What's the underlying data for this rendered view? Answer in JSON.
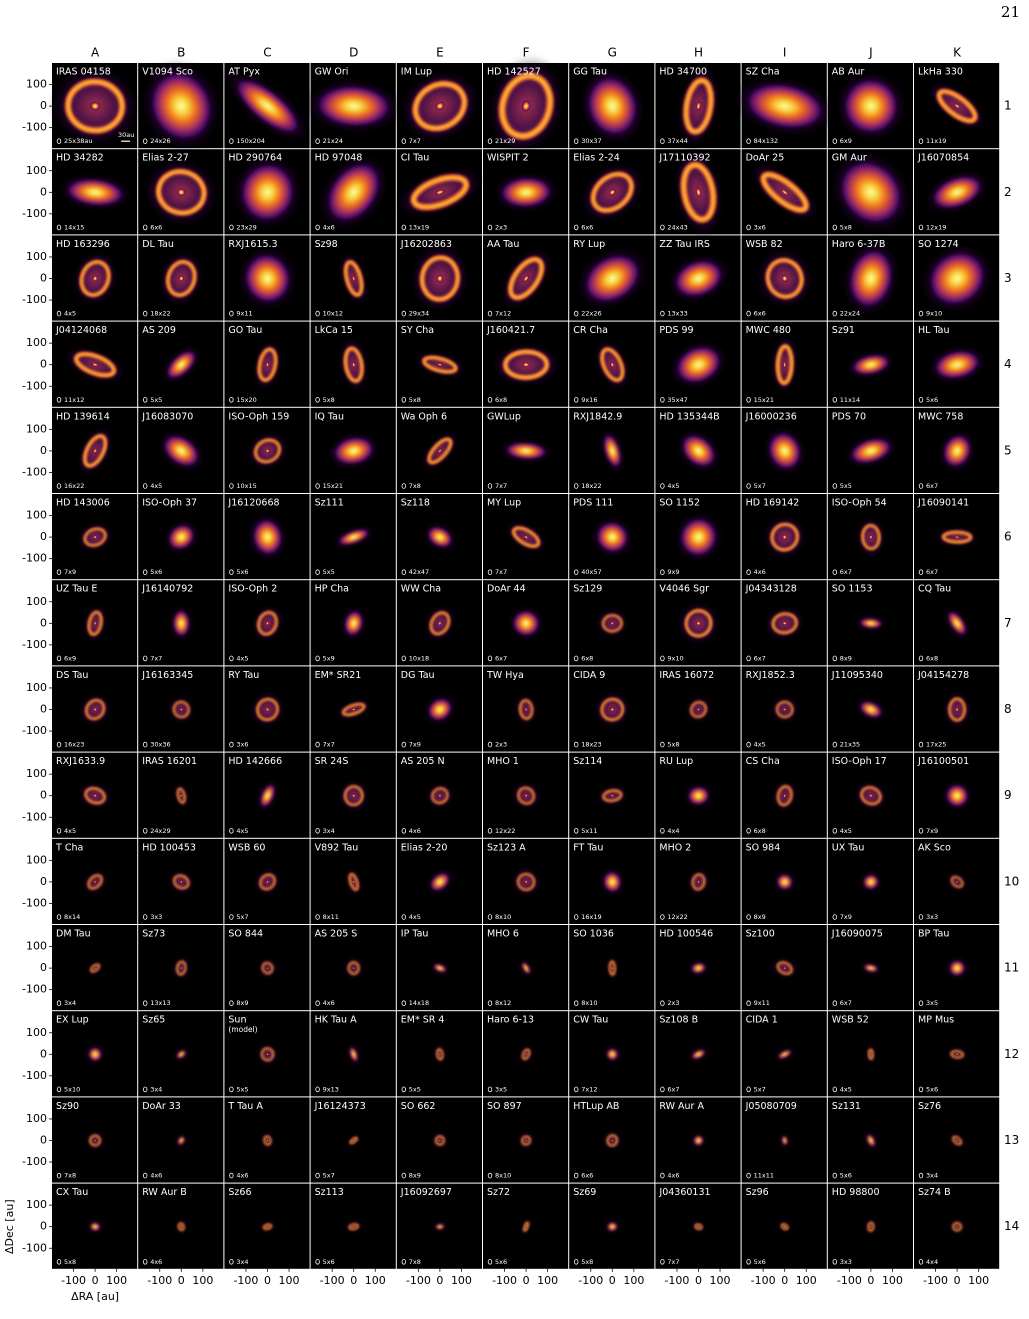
{
  "page_number": "21",
  "columns": [
    "A",
    "B",
    "C",
    "D",
    "E",
    "F",
    "G",
    "H",
    "I",
    "J",
    "K"
  ],
  "scale_bar": "30au",
  "axes": {
    "ylabel": "ΔDec [au]",
    "xlabel": "ΔRA [au]",
    "xlim": [
      -200,
      200
    ],
    "ylim": [
      -200,
      200
    ],
    "xticks": [
      -100,
      0,
      100
    ],
    "yticks": [
      100,
      0,
      -100
    ]
  },
  "rows": [
    {
      "label": "1",
      "cells": [
        {
          "name": "IRAS 04158",
          "beam": "25x38au"
        },
        {
          "name": "V1094 Sco",
          "beam": "24x26"
        },
        {
          "name": "AT Pyx",
          "beam": "150x204"
        },
        {
          "name": "GW Ori",
          "beam": "21x24"
        },
        {
          "name": "IM Lup",
          "beam": "7x7"
        },
        {
          "name": "HD 142527",
          "beam": "21x29"
        },
        {
          "name": "GG Tau",
          "beam": "30x37"
        },
        {
          "name": "HD 34700",
          "beam": "37x44"
        },
        {
          "name": "SZ Cha",
          "beam": "84x132"
        },
        {
          "name": "AB Aur",
          "beam": "6x9"
        },
        {
          "name": "LkHa 330",
          "beam": "11x19"
        }
      ]
    },
    {
      "label": "2",
      "cells": [
        {
          "name": "HD 34282",
          "beam": "14x15"
        },
        {
          "name": "Elias 2-27",
          "beam": "6x6"
        },
        {
          "name": "HD 290764",
          "beam": "23x29"
        },
        {
          "name": "HD 97048",
          "beam": "4x6"
        },
        {
          "name": "CI Tau",
          "beam": "13x19"
        },
        {
          "name": "WISPIT 2",
          "beam": "2x3"
        },
        {
          "name": "Elias 2-24",
          "beam": "6x6"
        },
        {
          "name": "J17110392",
          "beam": "24x43"
        },
        {
          "name": "DoAr 25",
          "beam": "3x6"
        },
        {
          "name": "GM Aur",
          "beam": "5x8"
        },
        {
          "name": "J16070854",
          "beam": "12x19"
        }
      ]
    },
    {
      "label": "3",
      "cells": [
        {
          "name": "HD 163296",
          "beam": "4x5"
        },
        {
          "name": "DL Tau",
          "beam": "18x22"
        },
        {
          "name": "RXJ1615.3",
          "beam": "9x11"
        },
        {
          "name": "Sz98",
          "beam": "10x12"
        },
        {
          "name": "J16202863",
          "beam": "29x34"
        },
        {
          "name": "AA Tau",
          "beam": "7x12"
        },
        {
          "name": "RY Lup",
          "beam": "22x26"
        },
        {
          "name": "ZZ Tau IRS",
          "beam": "13x33"
        },
        {
          "name": "WSB 82",
          "beam": "6x6"
        },
        {
          "name": "Haro 6-37B",
          "beam": "22x24"
        },
        {
          "name": "SO 1274",
          "beam": "9x10"
        }
      ]
    },
    {
      "label": "4",
      "cells": [
        {
          "name": "J04124068",
          "beam": "11x12"
        },
        {
          "name": "AS 209",
          "beam": "5x5"
        },
        {
          "name": "GO Tau",
          "beam": "15x20"
        },
        {
          "name": "LkCa 15",
          "beam": "5x8"
        },
        {
          "name": "SY Cha",
          "beam": "5x8"
        },
        {
          "name": "J160421.7",
          "beam": "6x8"
        },
        {
          "name": "CR Cha",
          "beam": "9x16"
        },
        {
          "name": "PDS 99",
          "beam": "35x47"
        },
        {
          "name": "MWC 480",
          "beam": "15x21"
        },
        {
          "name": "Sz91",
          "beam": "11x14"
        },
        {
          "name": "HL Tau",
          "beam": "5x6"
        }
      ]
    },
    {
      "label": "5",
      "cells": [
        {
          "name": "HD 139614",
          "beam": "16x22"
        },
        {
          "name": "J16083070",
          "beam": "4x5"
        },
        {
          "name": "ISO-Oph 159",
          "beam": "10x15"
        },
        {
          "name": "IQ Tau",
          "beam": "15x21"
        },
        {
          "name": "Wa Oph 6",
          "beam": "7x8"
        },
        {
          "name": "GWLup",
          "beam": "7x7"
        },
        {
          "name": "RXJ1842.9",
          "beam": "18x22"
        },
        {
          "name": "HD 135344B",
          "beam": "4x5"
        },
        {
          "name": "J16000236",
          "beam": "5x7"
        },
        {
          "name": "PDS 70",
          "beam": "5x5"
        },
        {
          "name": "MWC 758",
          "beam": "6x7"
        }
      ]
    },
    {
      "label": "6",
      "cells": [
        {
          "name": "HD 143006",
          "beam": "7x9"
        },
        {
          "name": "ISO-Oph 37",
          "beam": "5x6"
        },
        {
          "name": "J16120668",
          "beam": "5x6"
        },
        {
          "name": "Sz111",
          "beam": "5x5"
        },
        {
          "name": "Sz118",
          "beam": "42x47"
        },
        {
          "name": "MY Lup",
          "beam": "7x7"
        },
        {
          "name": "PDS 111",
          "beam": "40x57"
        },
        {
          "name": "SO 1152",
          "beam": "9x9"
        },
        {
          "name": "HD 169142",
          "beam": "4x6"
        },
        {
          "name": "ISO-Oph 54",
          "beam": "6x7"
        },
        {
          "name": "J16090141",
          "beam": "6x7"
        }
      ]
    },
    {
      "label": "7",
      "cells": [
        {
          "name": "UZ Tau E",
          "beam": "6x9"
        },
        {
          "name": "J16140792",
          "beam": "7x7"
        },
        {
          "name": "ISO-Oph 2",
          "beam": "4x5"
        },
        {
          "name": "HP Cha",
          "beam": "5x9"
        },
        {
          "name": "WW Cha",
          "beam": "10x18"
        },
        {
          "name": "DoAr 44",
          "beam": "6x7"
        },
        {
          "name": "Sz129",
          "beam": "6x8"
        },
        {
          "name": "V4046 Sgr",
          "beam": "9x10"
        },
        {
          "name": "J04343128",
          "beam": "6x7"
        },
        {
          "name": "SO 1153",
          "beam": "8x9"
        },
        {
          "name": "CQ Tau",
          "beam": "6x8"
        }
      ]
    },
    {
      "label": "8",
      "cells": [
        {
          "name": "DS Tau",
          "beam": "16x23"
        },
        {
          "name": "J16163345",
          "beam": "30x36"
        },
        {
          "name": "RY Tau",
          "beam": "3x6"
        },
        {
          "name": "EM* SR21",
          "beam": "7x7"
        },
        {
          "name": "DG Tau",
          "beam": "7x9"
        },
        {
          "name": "TW Hya",
          "beam": "2x3"
        },
        {
          "name": "CIDA 9",
          "beam": "18x23"
        },
        {
          "name": "IRAS 16072",
          "beam": "5x8"
        },
        {
          "name": "RXJ1852.3",
          "beam": "4x5"
        },
        {
          "name": "J11095340",
          "beam": "21x35"
        },
        {
          "name": "J04154278",
          "beam": "17x25"
        }
      ]
    },
    {
      "label": "9",
      "cells": [
        {
          "name": "RXJ1633.9",
          "beam": "4x5"
        },
        {
          "name": "IRAS 16201",
          "beam": "24x29"
        },
        {
          "name": "HD 142666",
          "beam": "4x5"
        },
        {
          "name": "SR 24S",
          "beam": "3x4"
        },
        {
          "name": "AS 205 N",
          "beam": "4x6"
        },
        {
          "name": "MHO 1",
          "beam": "12x22"
        },
        {
          "name": "Sz114",
          "beam": "5x11"
        },
        {
          "name": "RU Lup",
          "beam": "4x4"
        },
        {
          "name": "CS Cha",
          "beam": "6x8"
        },
        {
          "name": "ISO-Oph 17",
          "beam": "4x5"
        },
        {
          "name": "J16100501",
          "beam": "7x9"
        }
      ]
    },
    {
      "label": "10",
      "cells": [
        {
          "name": "T Cha",
          "beam": "8x14"
        },
        {
          "name": "HD 100453",
          "beam": "3x3"
        },
        {
          "name": "WSB 60",
          "beam": "5x7"
        },
        {
          "name": "V892 Tau",
          "beam": "8x11"
        },
        {
          "name": "Elias 2-20",
          "beam": "4x5"
        },
        {
          "name": "Sz123 A",
          "beam": "8x10"
        },
        {
          "name": "FT Tau",
          "beam": "16x19"
        },
        {
          "name": "MHO 2",
          "beam": "12x22"
        },
        {
          "name": "SO 984",
          "beam": "8x9"
        },
        {
          "name": "UX Tau",
          "beam": "7x9"
        },
        {
          "name": "AK Sco",
          "beam": "3x3"
        }
      ]
    },
    {
      "label": "11",
      "cells": [
        {
          "name": "DM Tau",
          "beam": "3x4"
        },
        {
          "name": "Sz73",
          "beam": "13x13"
        },
        {
          "name": "SO 844",
          "beam": "8x9"
        },
        {
          "name": "AS 205 S",
          "beam": "4x6"
        },
        {
          "name": "IP Tau",
          "beam": "14x18"
        },
        {
          "name": "MHO 6",
          "beam": "8x12"
        },
        {
          "name": "SO 1036",
          "beam": "8x10"
        },
        {
          "name": "HD 100546",
          "beam": "2x3"
        },
        {
          "name": "Sz100",
          "beam": "9x11"
        },
        {
          "name": "J16090075",
          "beam": "6x7"
        },
        {
          "name": "BP Tau",
          "beam": "3x5"
        }
      ]
    },
    {
      "label": "12",
      "cells": [
        {
          "name": "EX Lup",
          "beam": "5x10"
        },
        {
          "name": "Sz65",
          "beam": "3x4"
        },
        {
          "name": "Sun",
          "note": "(model)",
          "beam": "5x5"
        },
        {
          "name": "HK Tau A",
          "beam": "9x13"
        },
        {
          "name": "EM* SR 4",
          "beam": "5x5"
        },
        {
          "name": "Haro 6-13",
          "beam": "3x5"
        },
        {
          "name": "CW Tau",
          "beam": "7x12"
        },
        {
          "name": "Sz108 B",
          "beam": "6x7"
        },
        {
          "name": "CIDA 1",
          "beam": "5x7"
        },
        {
          "name": "WSB 52",
          "beam": "4x5"
        },
        {
          "name": "MP Mus",
          "beam": "5x6"
        }
      ]
    },
    {
      "label": "13",
      "cells": [
        {
          "name": "Sz90",
          "beam": "7x8"
        },
        {
          "name": "DoAr 33",
          "beam": "4x6"
        },
        {
          "name": "T Tau A",
          "beam": "4x6"
        },
        {
          "name": "J16124373",
          "beam": "5x7"
        },
        {
          "name": "SO 662",
          "beam": "8x9"
        },
        {
          "name": "SO 897",
          "beam": "8x10"
        },
        {
          "name": "HTLup AB",
          "beam": "6x6"
        },
        {
          "name": "RW Aur A",
          "beam": "4x6"
        },
        {
          "name": "J05080709",
          "beam": "11x11"
        },
        {
          "name": "Sz131",
          "beam": "5x6"
        },
        {
          "name": "Sz76",
          "beam": "3x4"
        }
      ]
    },
    {
      "label": "14",
      "cells": [
        {
          "name": "CX Tau",
          "beam": "5x8"
        },
        {
          "name": "RW Aur B",
          "beam": "4x6"
        },
        {
          "name": "Sz66",
          "beam": "3x4"
        },
        {
          "name": "Sz113",
          "beam": "5x6"
        },
        {
          "name": "J16092697",
          "beam": "7x8"
        },
        {
          "name": "Sz72",
          "beam": "5x6"
        },
        {
          "name": "Sz69",
          "beam": "5x8"
        },
        {
          "name": "J04360131",
          "beam": "7x7"
        },
        {
          "name": "Sz96",
          "beam": "5x6"
        },
        {
          "name": "HD 98800",
          "beam": "3x3"
        },
        {
          "name": "Sz74 B",
          "beam": "4x4"
        }
      ]
    }
  ]
}
